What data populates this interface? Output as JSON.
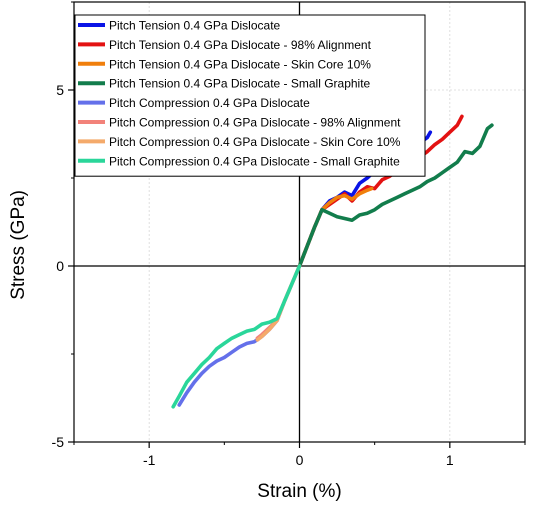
{
  "chart_data": {
    "type": "line",
    "title": "",
    "xlabel": "Strain (%)",
    "ylabel": "Stress (GPa)",
    "xlim": [
      -1.5,
      1.5
    ],
    "ylim": [
      -5,
      7.5
    ],
    "x_ticks": [
      {
        "value": -1,
        "label": "-1"
      },
      {
        "value": 0,
        "label": "0"
      },
      {
        "value": 1,
        "label": "1"
      }
    ],
    "y_ticks": [
      {
        "value": -5,
        "label": "-5"
      },
      {
        "value": 0,
        "label": "0"
      },
      {
        "value": 5,
        "label": "5"
      }
    ],
    "grid": true,
    "legend_position": "top-left",
    "series": [
      {
        "name": "Pitch Tension 0.4 GPa Dislocate",
        "color": "#0a14e6",
        "x": [
          0,
          0.05,
          0.1,
          0.15,
          0.2,
          0.25,
          0.3,
          0.35,
          0.4,
          0.45,
          0.5,
          0.55,
          0.6,
          0.65,
          0.7,
          0.75,
          0.8,
          0.85,
          0.87
        ],
        "y": [
          0,
          0.55,
          1.1,
          1.6,
          1.85,
          1.95,
          2.1,
          2.0,
          2.35,
          2.5,
          2.7,
          2.65,
          2.9,
          3.05,
          3.2,
          3.35,
          3.5,
          3.65,
          3.8
        ]
      },
      {
        "name": "Pitch Tension 0.4 GPa Dislocate - 98% Alignment",
        "color": "#e31212",
        "x": [
          0,
          0.05,
          0.1,
          0.15,
          0.2,
          0.25,
          0.3,
          0.35,
          0.4,
          0.45,
          0.5,
          0.55,
          0.6,
          0.65,
          0.7,
          0.75,
          0.8,
          0.85,
          0.9,
          0.95,
          1.0,
          1.05,
          1.08
        ],
        "y": [
          0,
          0.55,
          1.1,
          1.6,
          1.75,
          1.9,
          2.05,
          1.85,
          2.1,
          2.25,
          2.2,
          2.45,
          2.55,
          2.7,
          2.85,
          2.95,
          3.1,
          3.25,
          3.45,
          3.6,
          3.8,
          4.0,
          4.25
        ]
      },
      {
        "name": "Pitch Tension 0.4 GPa Dislocate - Skin Core 10%",
        "color": "#f07f0c",
        "x": [
          0,
          0.05,
          0.1,
          0.15,
          0.2,
          0.25,
          0.3,
          0.35,
          0.4,
          0.45,
          0.48
        ],
        "y": [
          0,
          0.55,
          1.1,
          1.6,
          1.8,
          1.95,
          2.0,
          1.9,
          2.05,
          2.15,
          2.2
        ]
      },
      {
        "name": "Pitch Tension 0.4 GPa Dislocate - Small Graphite",
        "color": "#127d4c",
        "x": [
          0,
          0.05,
          0.1,
          0.15,
          0.2,
          0.25,
          0.3,
          0.35,
          0.4,
          0.45,
          0.5,
          0.55,
          0.6,
          0.65,
          0.7,
          0.75,
          0.8,
          0.85,
          0.9,
          0.95,
          1.0,
          1.05,
          1.1,
          1.15,
          1.2,
          1.25,
          1.28
        ],
        "y": [
          0,
          0.55,
          1.1,
          1.6,
          1.5,
          1.4,
          1.35,
          1.3,
          1.45,
          1.5,
          1.6,
          1.75,
          1.85,
          1.95,
          2.05,
          2.15,
          2.25,
          2.4,
          2.5,
          2.65,
          2.8,
          2.95,
          3.25,
          3.2,
          3.4,
          3.9,
          4.0
        ]
      },
      {
        "name": "Pitch Compression 0.4 GPa Dislocate",
        "color": "#6470ea",
        "x": [
          0,
          -0.05,
          -0.1,
          -0.15,
          -0.2,
          -0.25,
          -0.3,
          -0.35,
          -0.4,
          -0.45,
          -0.5,
          -0.55,
          -0.6,
          -0.65,
          -0.7,
          -0.75,
          -0.8
        ],
        "y": [
          0,
          -0.5,
          -1.0,
          -1.55,
          -1.8,
          -2.0,
          -2.15,
          -2.2,
          -2.3,
          -2.45,
          -2.6,
          -2.7,
          -2.85,
          -3.05,
          -3.3,
          -3.6,
          -3.95
        ]
      },
      {
        "name": "Pitch Compression 0.4 GPa Dislocate - 98% Alignment",
        "color": "#f2827a",
        "x": [
          0,
          -0.05,
          -0.1,
          -0.15,
          -0.2,
          -0.25,
          -0.28
        ],
        "y": [
          0,
          -0.5,
          -1.0,
          -1.55,
          -1.75,
          -1.95,
          -2.05
        ]
      },
      {
        "name": "Pitch Compression 0.4 GPa Dislocate - Skin Core 10%",
        "color": "#f4aa6b",
        "x": [
          0,
          -0.05,
          -0.1,
          -0.15,
          -0.2,
          -0.25,
          -0.28
        ],
        "y": [
          0,
          -0.5,
          -1.0,
          -1.55,
          -1.8,
          -2.0,
          -2.1
        ]
      },
      {
        "name": "Pitch Compression 0.4 GPa Dislocate - Small Graphite",
        "color": "#2ad69a",
        "x": [
          0,
          -0.05,
          -0.1,
          -0.15,
          -0.2,
          -0.25,
          -0.3,
          -0.35,
          -0.4,
          -0.45,
          -0.5,
          -0.55,
          -0.6,
          -0.65,
          -0.7,
          -0.75,
          -0.8,
          -0.84
        ],
        "y": [
          0,
          -0.5,
          -1.0,
          -1.5,
          -1.6,
          -1.65,
          -1.8,
          -1.85,
          -1.95,
          -2.05,
          -2.2,
          -2.35,
          -2.6,
          -2.8,
          -3.05,
          -3.3,
          -3.7,
          -4.0
        ]
      }
    ]
  }
}
